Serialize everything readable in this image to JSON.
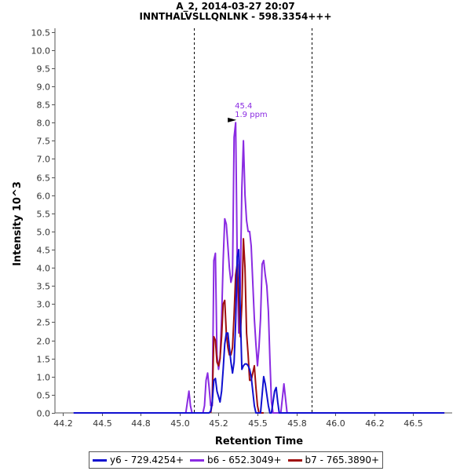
{
  "chart_data": {
    "type": "line",
    "title_line_1": "A_2, 2014-03-27 20:07",
    "title_line_2": "INNTHALVSLLQNLNK - 598.3354+++",
    "xlabel": "Retention Time",
    "ylabel": "Intensity 10^3",
    "xlim": [
      44.2,
      46.75
    ],
    "ylim": [
      0,
      10.6
    ],
    "xticks": [
      "44.2",
      "44.5",
      "44.8",
      "45.0",
      "45.2",
      "45.5",
      "45.8",
      "46.0",
      "46.2",
      "46.5"
    ],
    "xtick_values": [
      44.25,
      44.5,
      44.75,
      45.0,
      45.25,
      45.5,
      45.75,
      46.0,
      46.25,
      46.5
    ],
    "yticks": [
      "0.0",
      "0.5",
      "1.0",
      "1.5",
      "2.0",
      "2.5",
      "3.0",
      "3.5",
      "4.0",
      "4.5",
      "5.0",
      "5.5",
      "6.0",
      "6.5",
      "7.0",
      "7.5",
      "8.0",
      "8.5",
      "9.0",
      "9.5",
      "10.0",
      "10.5"
    ],
    "ytick_values": [
      0,
      0.5,
      1,
      1.5,
      2,
      2.5,
      3,
      3.5,
      4,
      4.5,
      5,
      5.5,
      6,
      6.5,
      7,
      7.5,
      8,
      8.5,
      9,
      9.5,
      10,
      10.5
    ],
    "integration_bounds": [
      45.09,
      45.85
    ],
    "peak_annotation": {
      "x": 45.38,
      "y": 8.05,
      "rt_label": "45.4",
      "ppm_label": "1.9 ppm"
    },
    "series": [
      {
        "name": "y6 - 729.4254+",
        "color": "#1010d0",
        "x": [
          44.32,
          45.19,
          45.2,
          45.21,
          45.22,
          45.23,
          45.24,
          45.26,
          45.27,
          45.28,
          45.29,
          45.3,
          45.31,
          45.32,
          45.33,
          45.34,
          45.35,
          45.36,
          45.37,
          45.38,
          45.39,
          45.4,
          45.41,
          45.42,
          45.43,
          45.44,
          45.45,
          45.46,
          45.47,
          45.48,
          45.49,
          45.5,
          45.51,
          45.52,
          45.53,
          45.54,
          45.55,
          45.56,
          45.57,
          45.58,
          45.59,
          45.6,
          45.61,
          45.62,
          45.63,
          45.64,
          45.65,
          45.66,
          45.67,
          45.68,
          45.69,
          45.7,
          45.71,
          45.72,
          46.7
        ],
        "values": [
          0,
          0,
          0.05,
          0.3,
          0.9,
          0.95,
          0.6,
          0.3,
          0.6,
          1.2,
          1.9,
          2.2,
          2.2,
          1.8,
          1.4,
          1.1,
          1.4,
          2.5,
          4.3,
          4.5,
          2.8,
          1.2,
          1.3,
          1.35,
          1.35,
          1.3,
          1.2,
          1.0,
          0.6,
          0.2,
          0,
          0,
          0,
          0,
          0.5,
          1.0,
          0.8,
          0.5,
          0.2,
          0,
          0,
          0.3,
          0.6,
          0.7,
          0.3,
          0,
          0,
          0,
          0,
          0,
          0,
          0,
          0,
          0,
          0
        ]
      },
      {
        "name": "b6 - 652.3049+",
        "color": "#8a2be2",
        "x": [
          44.32,
          45.04,
          45.05,
          45.06,
          45.07,
          45.08,
          45.09,
          45.1,
          45.11,
          45.12,
          45.13,
          45.14,
          45.15,
          45.16,
          45.17,
          45.18,
          45.19,
          45.2,
          45.21,
          45.22,
          45.23,
          45.24,
          45.25,
          45.26,
          45.27,
          45.28,
          45.29,
          45.3,
          45.31,
          45.32,
          45.33,
          45.34,
          45.35,
          45.36,
          45.37,
          45.38,
          45.39,
          45.4,
          45.41,
          45.42,
          45.43,
          45.44,
          45.45,
          45.46,
          45.47,
          45.48,
          45.49,
          45.5,
          45.51,
          45.52,
          45.53,
          45.54,
          45.55,
          45.56,
          45.57,
          45.58,
          45.59,
          45.6,
          45.61,
          45.62,
          45.63,
          45.64,
          45.65,
          45.66,
          45.67,
          45.68,
          45.69,
          45.7,
          45.71,
          45.72,
          45.73,
          46.7
        ],
        "values": [
          0,
          0,
          0.3,
          0.6,
          0.2,
          0,
          0,
          0,
          0,
          0,
          0,
          0,
          0,
          0.2,
          0.9,
          1.1,
          0.7,
          0.2,
          0.2,
          4.2,
          4.4,
          1.6,
          1.2,
          1.5,
          2.6,
          4.2,
          5.35,
          5.2,
          4.6,
          4.0,
          3.6,
          3.8,
          7.6,
          8.0,
          4.2,
          2.2,
          3.5,
          6.2,
          7.5,
          6.0,
          5.3,
          5.0,
          5.0,
          4.6,
          3.6,
          2.6,
          1.9,
          1.3,
          1.8,
          2.6,
          4.1,
          4.2,
          3.8,
          3.5,
          2.8,
          1.5,
          0.3,
          0,
          0,
          0,
          0,
          0,
          0,
          0.4,
          0.8,
          0.4,
          0,
          0,
          0,
          0,
          0,
          0
        ]
      },
      {
        "name": "b7 - 765.3890+",
        "color": "#a01010",
        "x": [
          45.2,
          45.21,
          45.22,
          45.23,
          45.24,
          45.25,
          45.26,
          45.27,
          45.28,
          45.29,
          45.3,
          45.31,
          45.32,
          45.33,
          45.34,
          45.35,
          45.36,
          45.37,
          45.38,
          45.39,
          45.4,
          45.41,
          45.42,
          45.43,
          45.44,
          45.45,
          45.46,
          45.47,
          45.48,
          45.49,
          45.5,
          45.51,
          45.52,
          45.53,
          45.54
        ],
        "values": [
          0,
          0.3,
          2.1,
          2.0,
          1.4,
          1.3,
          1.5,
          2.1,
          3.0,
          3.1,
          2.2,
          1.8,
          1.6,
          1.6,
          1.8,
          2.7,
          3.8,
          4.1,
          3.1,
          2.1,
          3.0,
          4.8,
          4.0,
          2.2,
          1.6,
          0.9,
          0.9,
          1.1,
          1.3,
          0.7,
          0.2,
          0,
          0,
          0,
          0
        ]
      }
    ]
  }
}
